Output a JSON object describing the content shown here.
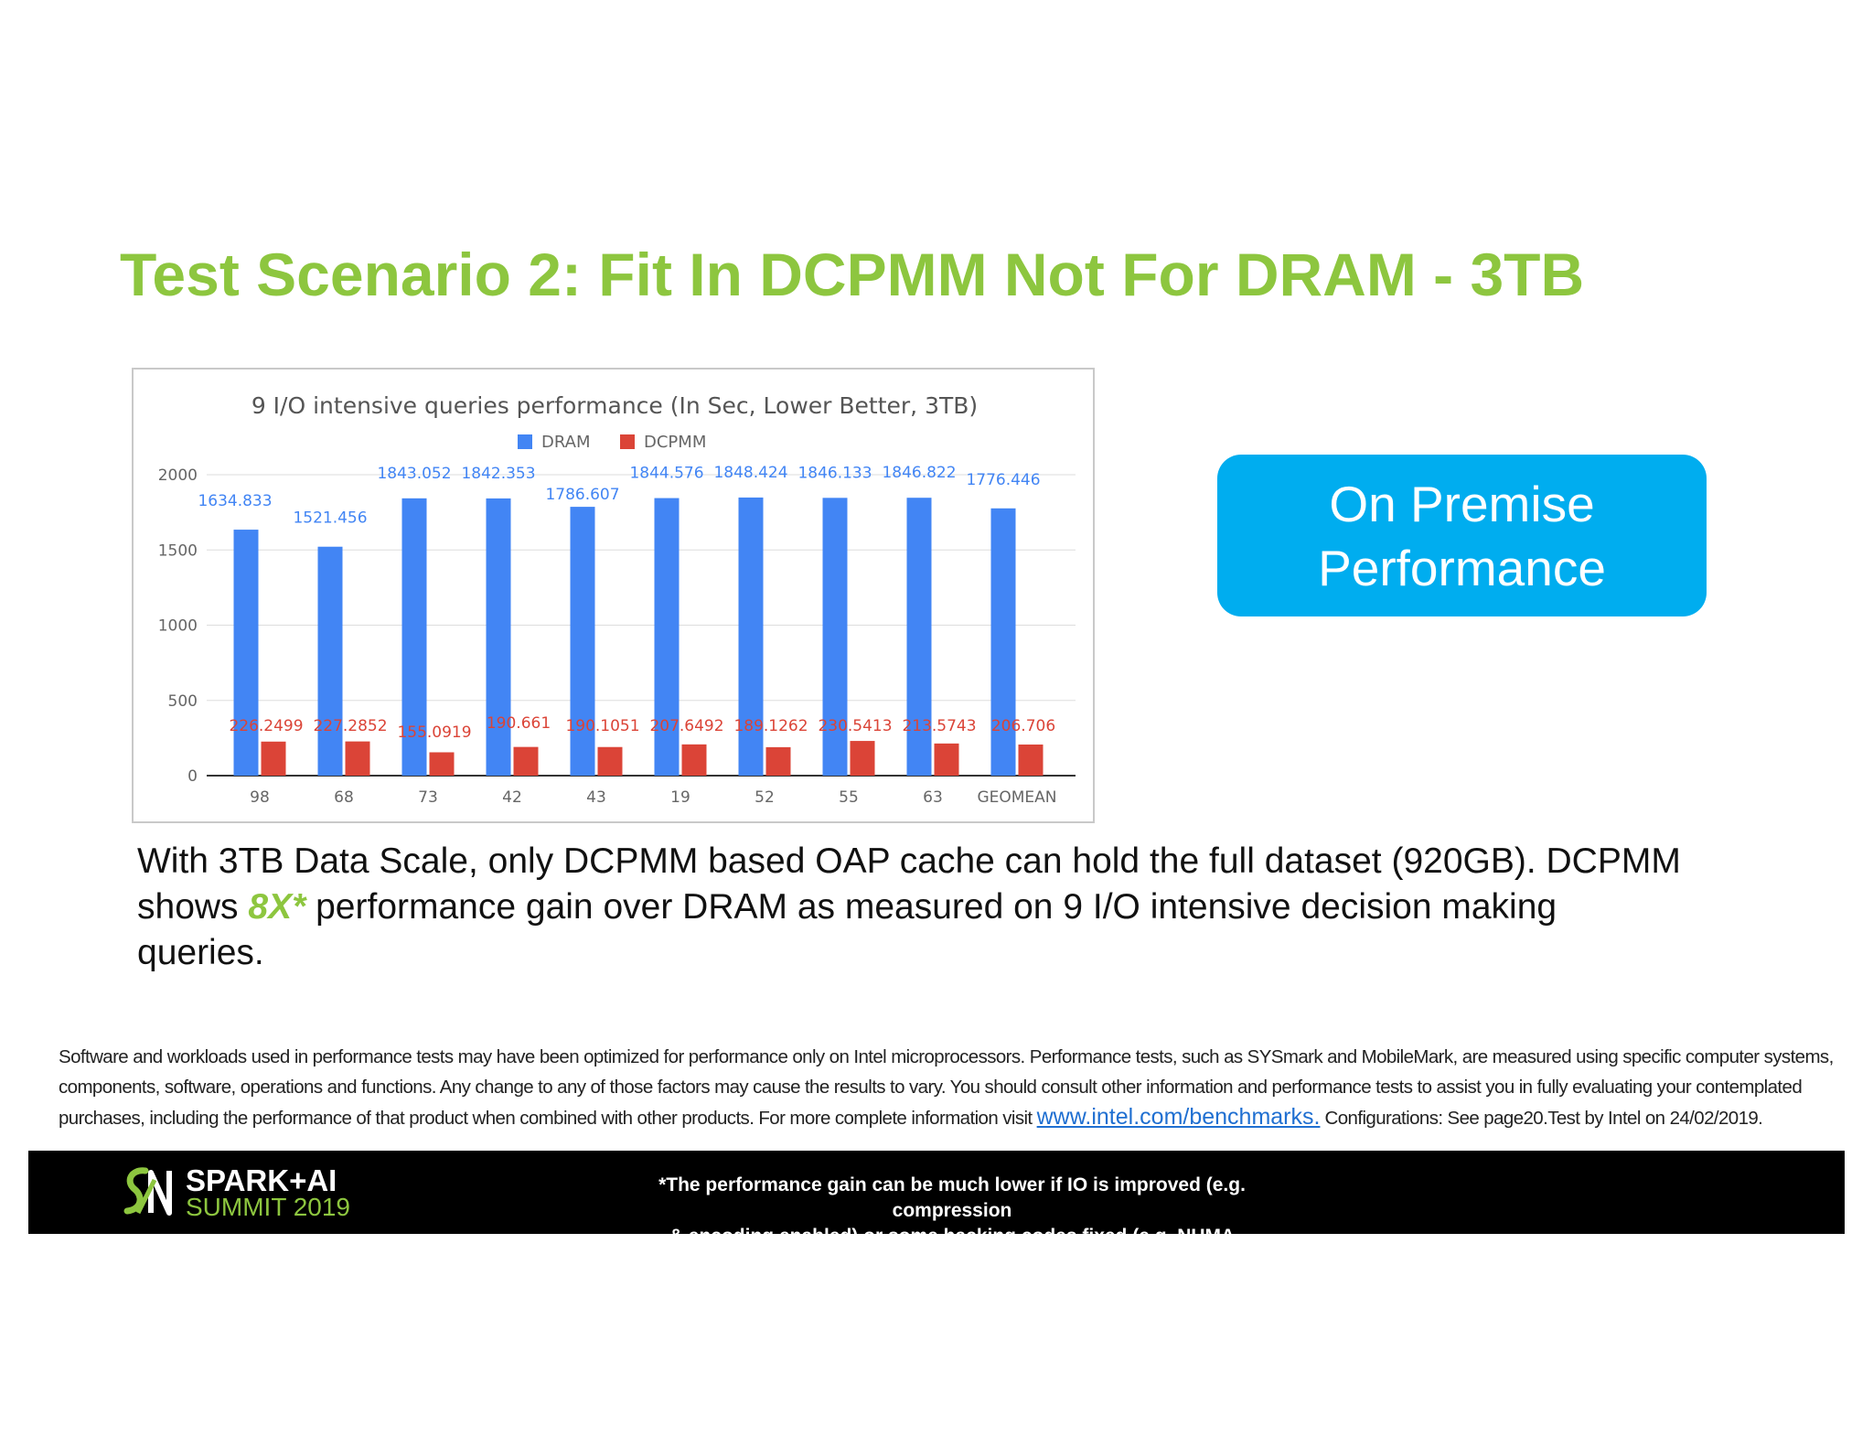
{
  "slide": {
    "title": "Test Scenario 2: Fit In DCPMM Not For DRAM - 3TB",
    "premise_line1": "On Premise",
    "premise_line2": "Performance",
    "body_part1": "With 3TB Data Scale, only DCPMM based OAP cache can hold the full dataset (920GB). DCPMM shows ",
    "body_highlight": "8X*",
    "body_part2": " performance gain over DRAM as measured on 9 I/O intensive decision making queries.",
    "disclaimer_part1": "Software and workloads used in performance tests may have been optimized for performance only on Intel microprocessors. Performance tests, such as SYSmark and MobileMark, are measured using specific computer systems, components, software, operations and functions. Any change to any of those factors may cause the results to vary. You should consult other information and performance tests to assist you in fully evaluating your contemplated purchases, including the performance of that product when combined with other products. For more complete information visit ",
    "disclaimer_link": "www.intel.com/benchmarks.",
    "disclaimer_part2": " Configurations: See page20.Test by Intel on 24/02/2019.",
    "logo_line1": "SPARK+AI",
    "logo_line2": "SUMMIT 2019",
    "footnote_line1": "*The performance gain can be much lower if IO is improved (e.g. compression",
    "footnote_line2": "& encoding enabled) or some hacking codes fixed (e.g. NUMA scheduler)",
    "colors": {
      "title": "#8dc63f",
      "accent_box": "#00adef",
      "dram": "#4285f4",
      "dcpmm": "#db4437"
    }
  },
  "chart_data": {
    "type": "bar",
    "title": "9 I/O intensive queries performance (In Sec, Lower Better, 3TB)",
    "categories": [
      "98",
      "68",
      "73",
      "42",
      "43",
      "19",
      "52",
      "55",
      "63",
      "GEOMEAN"
    ],
    "series": [
      {
        "name": "DRAM",
        "color": "#4285f4",
        "values": [
          1634.833,
          1521.456,
          1843.052,
          1842.353,
          1786.607,
          1844.576,
          1848.424,
          1846.133,
          1846.822,
          1776.446
        ]
      },
      {
        "name": "DCPMM",
        "color": "#db4437",
        "values": [
          226.2499,
          227.2852,
          155.0919,
          190.661,
          190.1051,
          207.6492,
          189.1262,
          230.5413,
          213.5743,
          206.706
        ]
      }
    ],
    "y_ticks": [
      0,
      500,
      1000,
      1500,
      2000
    ],
    "ylim": [
      0,
      2000
    ],
    "legend_position": "top",
    "grid": true,
    "data_labels": true
  }
}
